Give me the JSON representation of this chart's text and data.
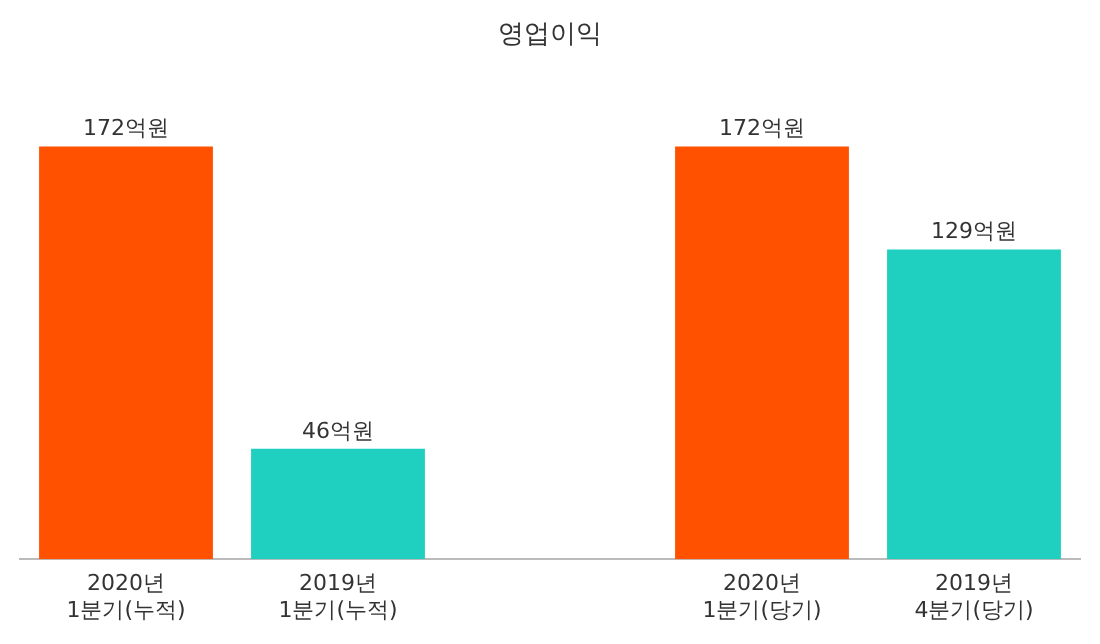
{
  "chart_data": {
    "type": "bar",
    "title": "영업이익",
    "categories": [
      "2020년\n1분기(누적)",
      "2019년\n1분기(누적)",
      null,
      "2020년\n1분기(당기)",
      "2019년\n4분기(당기)"
    ],
    "values": [
      172,
      46,
      null,
      172,
      129
    ],
    "colors": [
      "#ff5100",
      "#1fcfbf",
      null,
      "#ff5100",
      "#1fcfbf"
    ],
    "value_labels": [
      "172억원",
      "46억원",
      null,
      "172억원",
      "129억원"
    ],
    "legend": false,
    "grid": false
  }
}
